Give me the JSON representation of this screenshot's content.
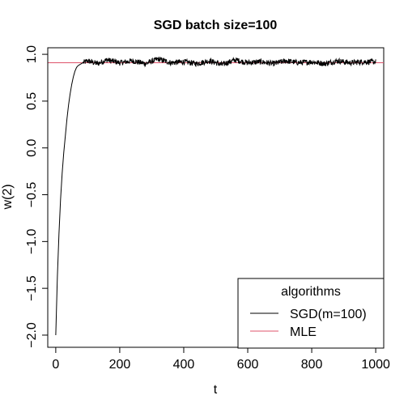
{
  "chart_data": {
    "type": "line",
    "title": "SGD batch size=100",
    "xlabel": "t",
    "ylabel": "w(2)",
    "xlim": [
      -25,
      1025
    ],
    "ylim": [
      -2.13,
      1.07
    ],
    "xticks": [
      "0",
      "200",
      "400",
      "600",
      "800",
      "1000"
    ],
    "xtick_values": [
      0,
      200,
      400,
      600,
      800,
      1000
    ],
    "yticks": [
      "−2.0",
      "−1.5",
      "−1.0",
      "−0.5",
      "0.0",
      "0.5",
      "1.0"
    ],
    "ytick_values": [
      -2.0,
      -1.5,
      -1.0,
      -0.5,
      0.0,
      0.5,
      1.0
    ],
    "grid": false,
    "legend": {
      "title": "algorithms",
      "position": "bottom-right"
    },
    "series": [
      {
        "name": "SGD(m=100)",
        "color": "#000000",
        "points": [
          [
            0,
            -2.0
          ],
          [
            5,
            -1.38
          ],
          [
            10,
            -0.92
          ],
          [
            15,
            -0.55
          ],
          [
            20,
            -0.27
          ],
          [
            25,
            -0.05
          ],
          [
            30,
            0.13
          ],
          [
            35,
            0.31
          ],
          [
            40,
            0.46
          ],
          [
            45,
            0.58
          ],
          [
            50,
            0.68
          ],
          [
            55,
            0.76
          ],
          [
            60,
            0.82
          ],
          [
            65,
            0.86
          ],
          [
            70,
            0.88
          ],
          [
            75,
            0.89
          ],
          [
            80,
            0.9
          ],
          [
            85,
            0.91
          ],
          [
            100,
            0.93
          ],
          [
            130,
            0.9
          ],
          [
            160,
            0.94
          ],
          [
            200,
            0.91
          ],
          [
            240,
            0.93
          ],
          [
            280,
            0.9
          ],
          [
            320,
            0.95
          ],
          [
            360,
            0.91
          ],
          [
            400,
            0.92
          ],
          [
            440,
            0.9
          ],
          [
            480,
            0.93
          ],
          [
            520,
            0.89
          ],
          [
            560,
            0.94
          ],
          [
            600,
            0.91
          ],
          [
            640,
            0.92
          ],
          [
            680,
            0.9
          ],
          [
            720,
            0.93
          ],
          [
            760,
            0.91
          ],
          [
            800,
            0.92
          ],
          [
            840,
            0.9
          ],
          [
            880,
            0.93
          ],
          [
            920,
            0.91
          ],
          [
            960,
            0.92
          ],
          [
            1000,
            0.92
          ]
        ],
        "noise_amplitude": 0.03
      },
      {
        "name": "MLE",
        "color": "#df536b",
        "value": 0.91
      }
    ]
  }
}
